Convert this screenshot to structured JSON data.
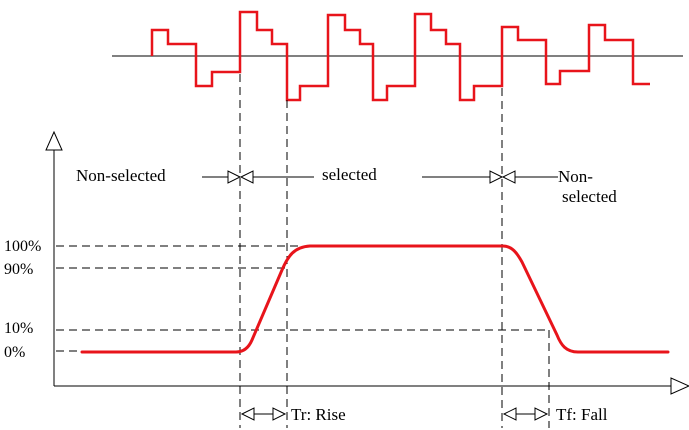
{
  "labels": {
    "non_selected_left": "Non-selected",
    "selected": "selected",
    "non_selected_right_1": "Non-",
    "non_selected_right_2": "selected",
    "tr_rise": "Tr: Rise",
    "tf_fall": "Tf: Fall"
  },
  "levels": [
    "100%",
    "90%",
    "10%",
    "0%"
  ],
  "colors": {
    "signal": "#e8141b",
    "lines": "#000000"
  }
}
